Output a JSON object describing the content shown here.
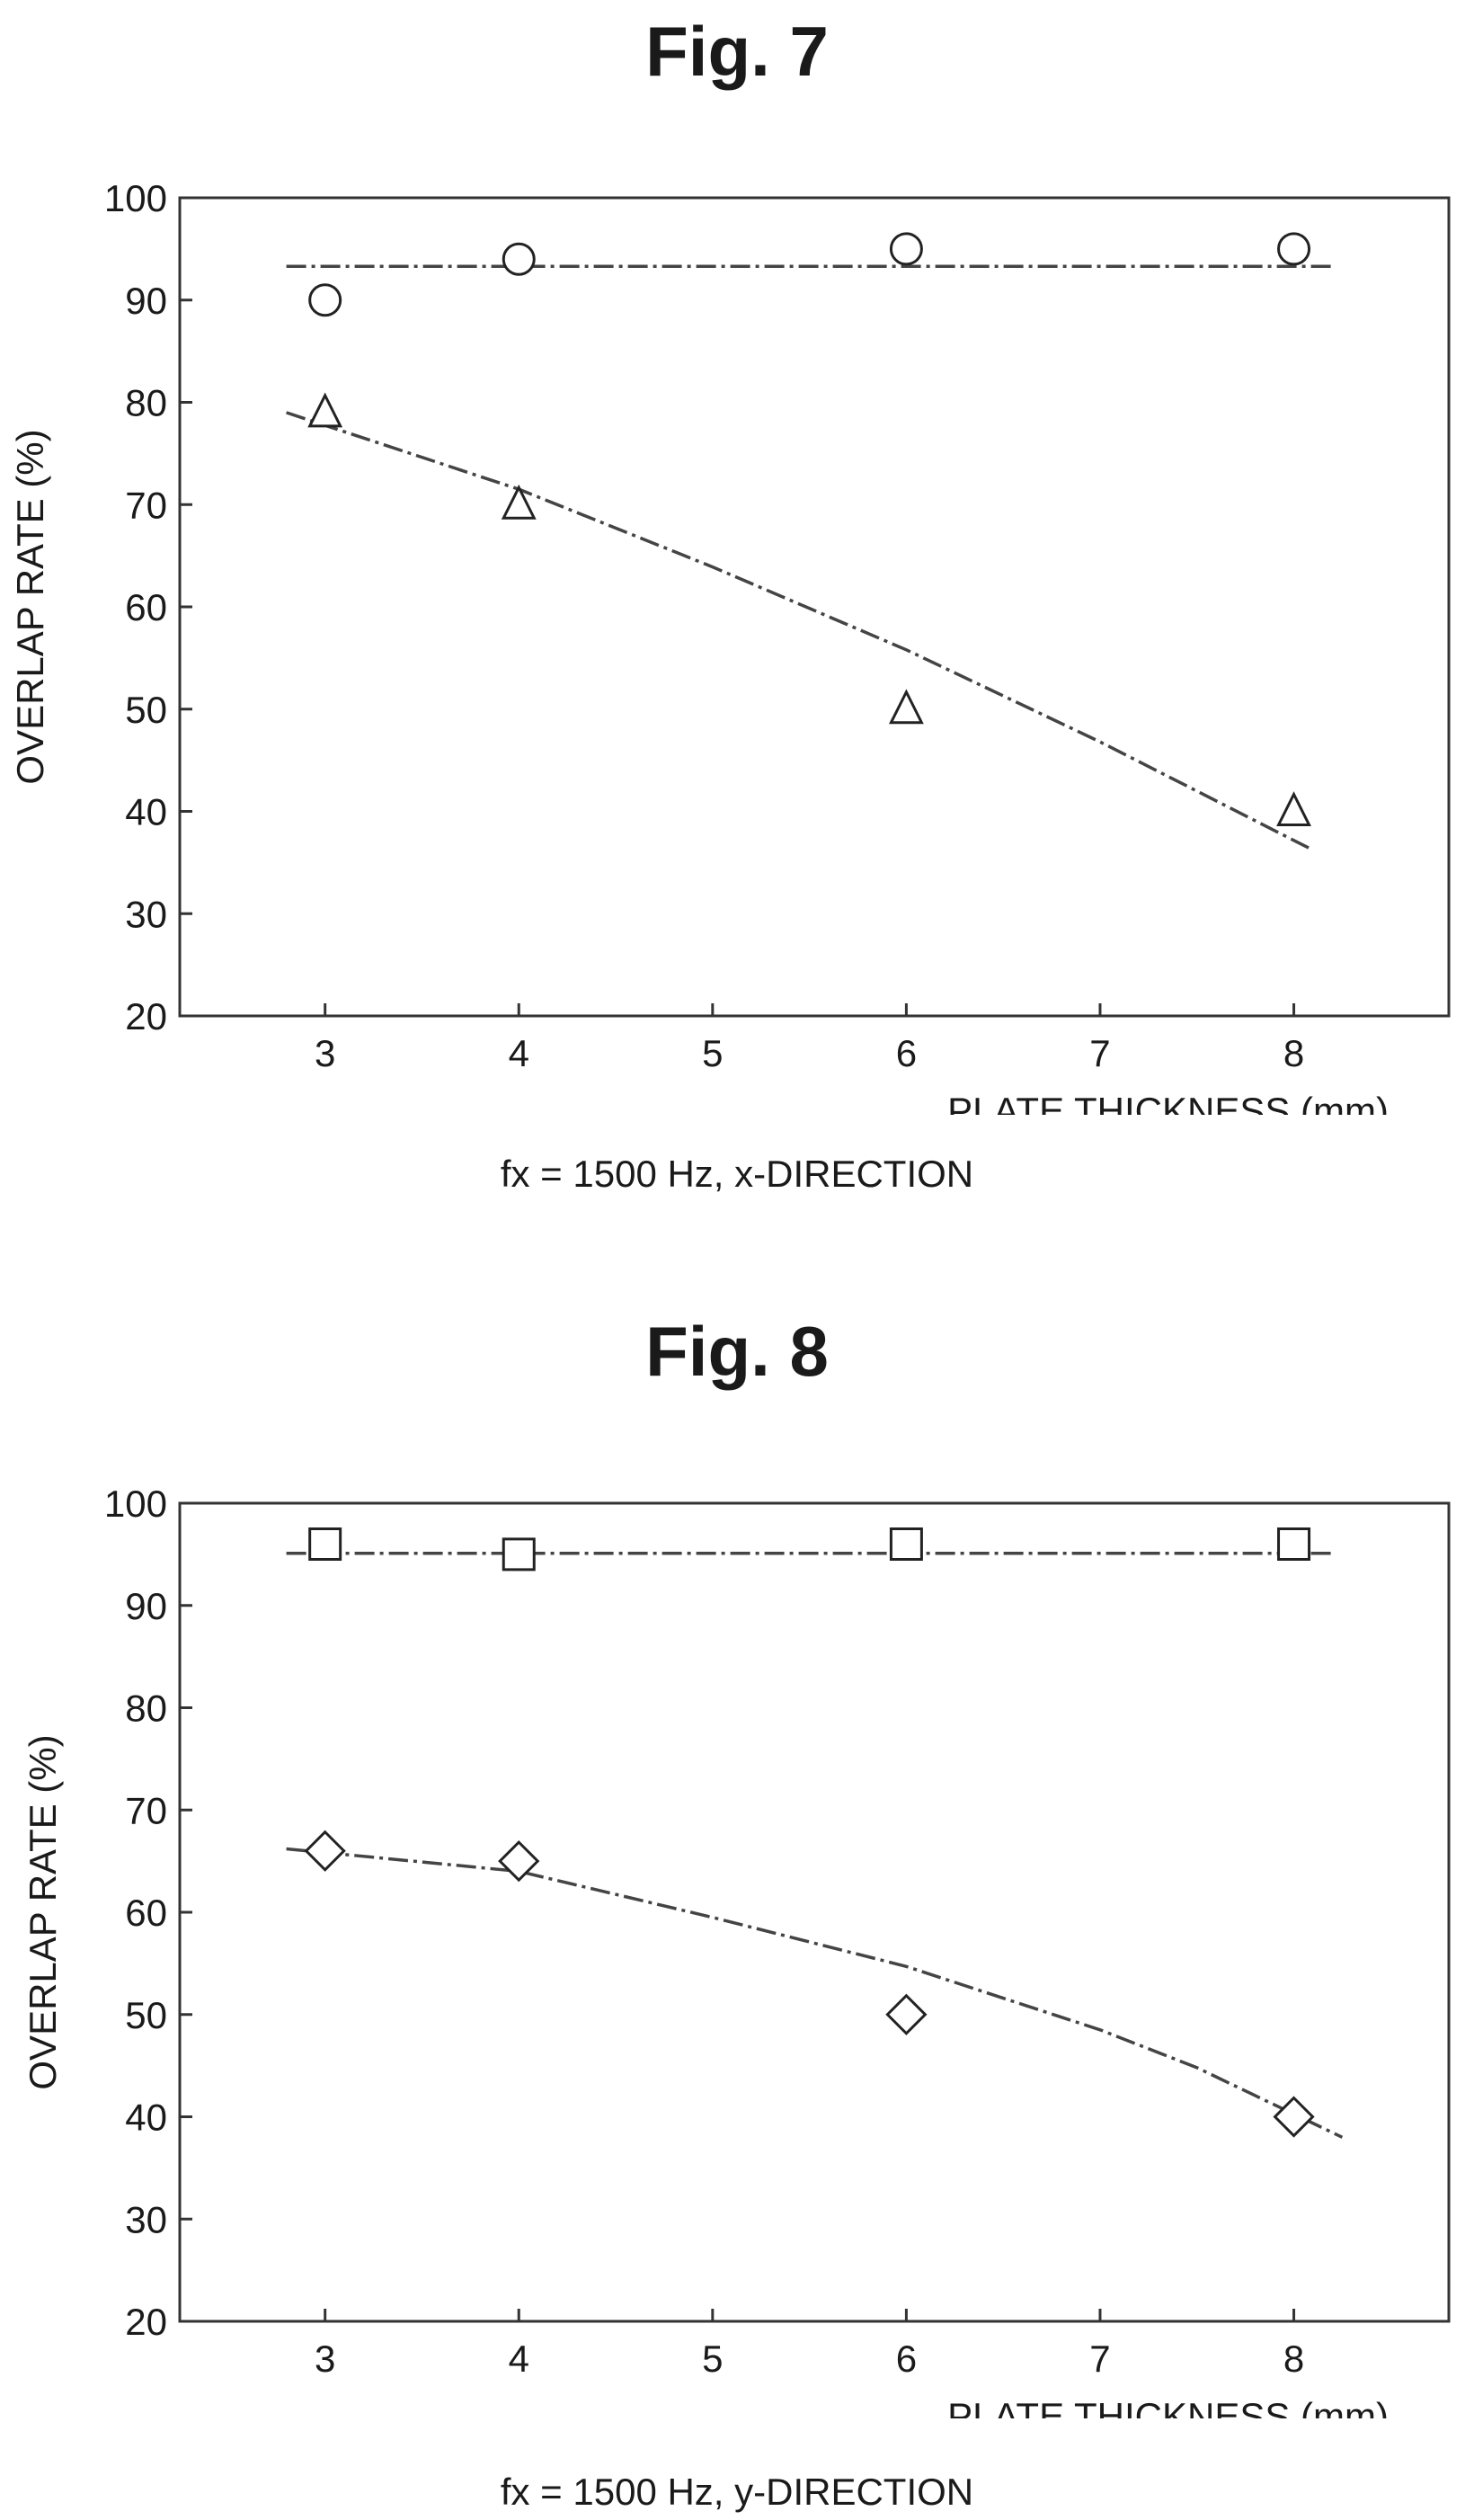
{
  "chart_data": [
    {
      "type": "scatter",
      "title": "Fig. 7",
      "subtitle": "fx = 1500 Hz, x-DIRECTION",
      "xlabel": "PLATE THICKNESS (mm)",
      "ylabel": "OVERLAP RATE (%)",
      "xlim": [
        2.25,
        8.8
      ],
      "ylim": [
        20,
        100
      ],
      "xticks": [
        3,
        4,
        5,
        6,
        7,
        8
      ],
      "yticks": [
        20,
        30,
        40,
        50,
        60,
        70,
        80,
        90,
        100
      ],
      "grid": false,
      "series": [
        {
          "marker": "circle",
          "x": [
            3,
            4,
            6,
            8
          ],
          "y": [
            90,
            94,
            95,
            95
          ],
          "fit_line": {
            "style": "dash-dot",
            "x": [
              2.8,
              8.2
            ],
            "y": [
              93.3,
              93.3
            ]
          }
        },
        {
          "marker": "triangle",
          "x": [
            3,
            4,
            6,
            8
          ],
          "y": [
            79,
            70,
            50,
            40
          ],
          "fit_line": {
            "style": "dash-dot",
            "x": [
              2.8,
              4,
              5,
              6,
              7,
              8.1
            ],
            "y": [
              79,
              71.5,
              63.9,
              55.8,
              46.8,
              36.2
            ]
          }
        }
      ]
    },
    {
      "type": "scatter",
      "title": "Fig. 8",
      "subtitle": "fx = 1500 Hz, y-DIRECTION",
      "xlabel": "PLATE THICKNESS (mm)",
      "ylabel": "OVERLAP RATE (%)",
      "xlim": [
        2.25,
        8.8
      ],
      "ylim": [
        20,
        100
      ],
      "xticks": [
        3,
        4,
        5,
        6,
        7,
        8
      ],
      "yticks": [
        20,
        30,
        40,
        50,
        60,
        70,
        80,
        90,
        100
      ],
      "grid": false,
      "series": [
        {
          "marker": "square",
          "x": [
            3,
            4,
            6,
            8
          ],
          "y": [
            96,
            95,
            96,
            96
          ],
          "fit_line": {
            "style": "dash-dot",
            "x": [
              2.8,
              8.2
            ],
            "y": [
              95.1,
              95.1
            ]
          }
        },
        {
          "marker": "diamond",
          "x": [
            3,
            4,
            6,
            8
          ],
          "y": [
            66,
            65,
            50,
            40
          ],
          "fit_line": {
            "style": "dash-dot",
            "x": [
              2.8,
              4,
              5,
              6,
              7,
              7.5,
              8.25
            ],
            "y": [
              66.2,
              64,
              59.5,
              54.7,
              48.5,
              44.8,
              38
            ]
          }
        }
      ]
    }
  ]
}
